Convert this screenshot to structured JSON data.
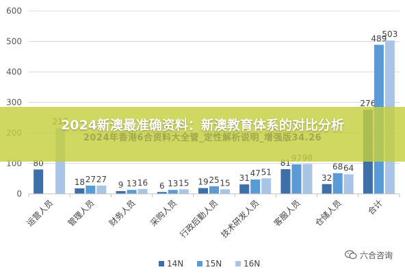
{
  "chart_data": {
    "type": "bar",
    "categories": [
      "运营人员",
      "管理人员",
      "财务人员",
      "采购人员",
      "行政后勤人员",
      "技术研发人员",
      "客服人员",
      "仓储人员",
      "合计"
    ],
    "series": [
      {
        "name": "14N",
        "color": "#3d6fa8",
        "values": [
          80,
          18,
          9,
          6,
          19,
          31,
          81,
          32,
          276
        ]
      },
      {
        "name": "15N",
        "color": "#5b9bd5",
        "values": [
          null,
          27,
          13,
          13,
          25,
          47,
          97,
          68,
          489
        ]
      },
      {
        "name": "16N",
        "color": "#a9c4e4",
        "values": [
          217,
          27,
          16,
          15,
          15,
          51,
          98,
          64,
          503
        ]
      }
    ],
    "data_labels": [
      [
        "80",
        null,
        "217"
      ],
      [
        "18",
        "27",
        "27"
      ],
      [
        "9",
        "13",
        "16"
      ],
      [
        "6",
        "13",
        "15"
      ],
      [
        "19",
        "25",
        "15"
      ],
      [
        "31",
        "47",
        "51"
      ],
      [
        "81",
        "97",
        "98"
      ],
      [
        "32",
        "68",
        "64"
      ],
      [
        "276",
        "489",
        "503"
      ]
    ],
    "yticks": [
      "0",
      "100",
      "200",
      "300",
      "400",
      "500",
      "600"
    ],
    "ylim": [
      0,
      600
    ],
    "grid": true,
    "legend_position": "bottom"
  },
  "overlay": {
    "headline": "2024新澳最准确资料：新澳教育体系的对比分析",
    "ghost_text": "2024年香港6合资料大全管_定性解析说明_增强版34.26"
  },
  "watermark": {
    "text": "六合咨询",
    "icon": "wechat-icon"
  }
}
